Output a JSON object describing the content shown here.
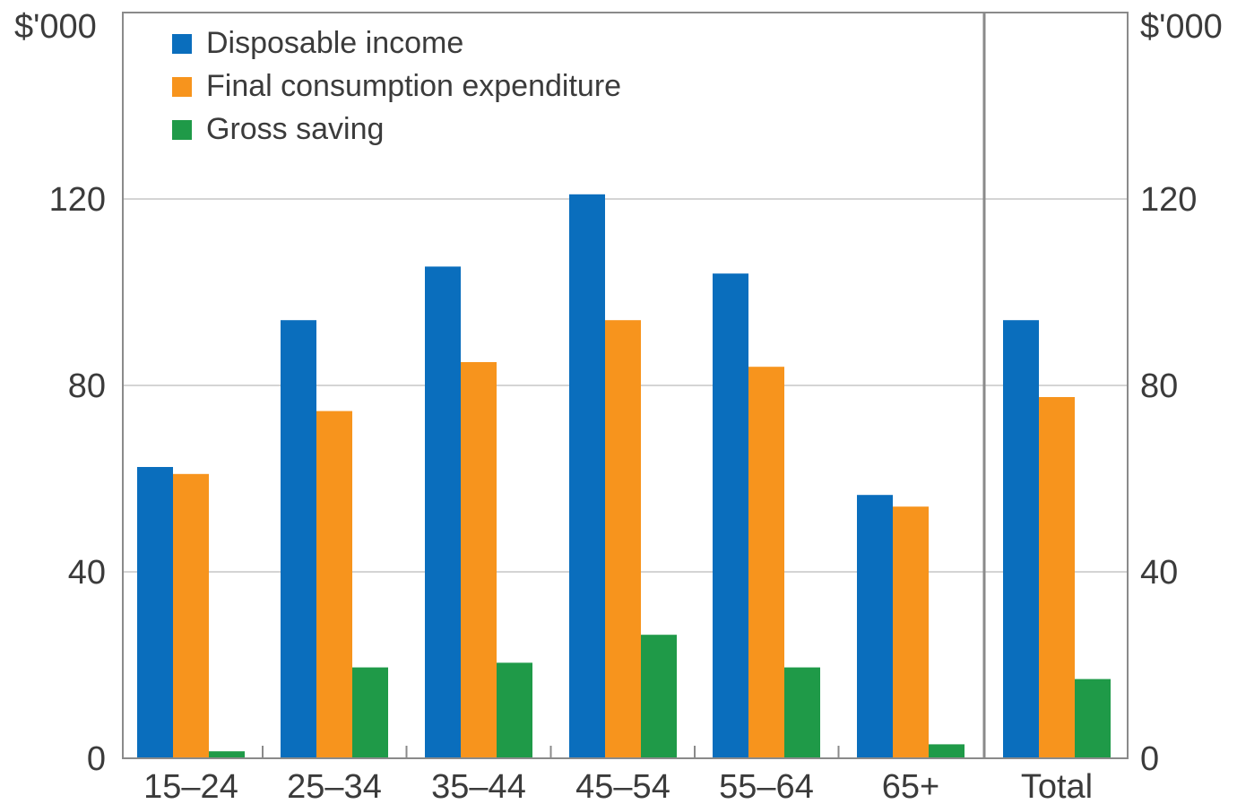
{
  "chart_data": {
    "type": "bar",
    "title": "",
    "y_unit_left": "$'000",
    "y_unit_right": "$'000",
    "categories": [
      "15–24",
      "25–34",
      "35–44",
      "45–54",
      "55–64",
      "65+",
      "Total"
    ],
    "series": [
      {
        "name": "Disposable income",
        "color": "#0a6ebd",
        "values": [
          62.5,
          94,
          105.5,
          121,
          104,
          56.5,
          94
        ]
      },
      {
        "name": "Final consumption expenditure",
        "color": "#f7941d",
        "values": [
          61,
          74.5,
          85,
          94,
          84,
          54,
          77.5
        ]
      },
      {
        "name": "Gross saving",
        "color": "#1f9a48",
        "values": [
          1.5,
          19.5,
          20.5,
          26.5,
          19.5,
          3,
          17
        ]
      }
    ],
    "ylim": [
      0,
      160
    ],
    "yticks": [
      0,
      40,
      80,
      120
    ],
    "grid": true,
    "legend_position": "top-left",
    "separator_before": "Total"
  }
}
